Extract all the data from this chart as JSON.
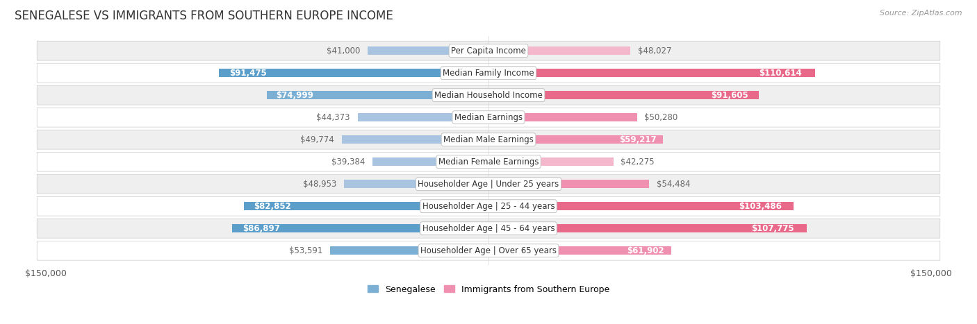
{
  "title": "SENEGALESE VS IMMIGRANTS FROM SOUTHERN EUROPE INCOME",
  "source": "Source: ZipAtlas.com",
  "categories": [
    "Per Capita Income",
    "Median Family Income",
    "Median Household Income",
    "Median Earnings",
    "Median Male Earnings",
    "Median Female Earnings",
    "Householder Age | Under 25 years",
    "Householder Age | 25 - 44 years",
    "Householder Age | 45 - 64 years",
    "Householder Age | Over 65 years"
  ],
  "senegalese_values": [
    41000,
    91475,
    74999,
    44373,
    49774,
    39384,
    48953,
    82852,
    86897,
    53591
  ],
  "immigrant_values": [
    48027,
    110614,
    91605,
    50280,
    59217,
    42275,
    54484,
    103486,
    107775,
    61902
  ],
  "senegalese_labels": [
    "$41,000",
    "$91,475",
    "$74,999",
    "$44,373",
    "$49,774",
    "$39,384",
    "$48,953",
    "$82,852",
    "$86,897",
    "$53,591"
  ],
  "immigrant_labels": [
    "$48,027",
    "$110,614",
    "$91,605",
    "$50,280",
    "$59,217",
    "$42,275",
    "$54,484",
    "$103,486",
    "$107,775",
    "$61,902"
  ],
  "max_value": 150000,
  "color_senegalese_light": "#a8c4e0",
  "color_senegalese_medium": "#7bafd4",
  "color_senegalese_strong": "#5b9ec9",
  "color_immigrant_light": "#f4b8cc",
  "color_immigrant_medium": "#f090b0",
  "color_immigrant_strong": "#e8698a",
  "color_label_outside": "#666666",
  "color_label_inside_white": "#ffffff",
  "background_row_gray": "#efefef",
  "background_row_white": "#ffffff",
  "label_fontsize": 8.5,
  "cat_fontsize": 8.5,
  "title_fontsize": 12,
  "legend_fontsize": 9,
  "inside_label_threshold": 55000
}
